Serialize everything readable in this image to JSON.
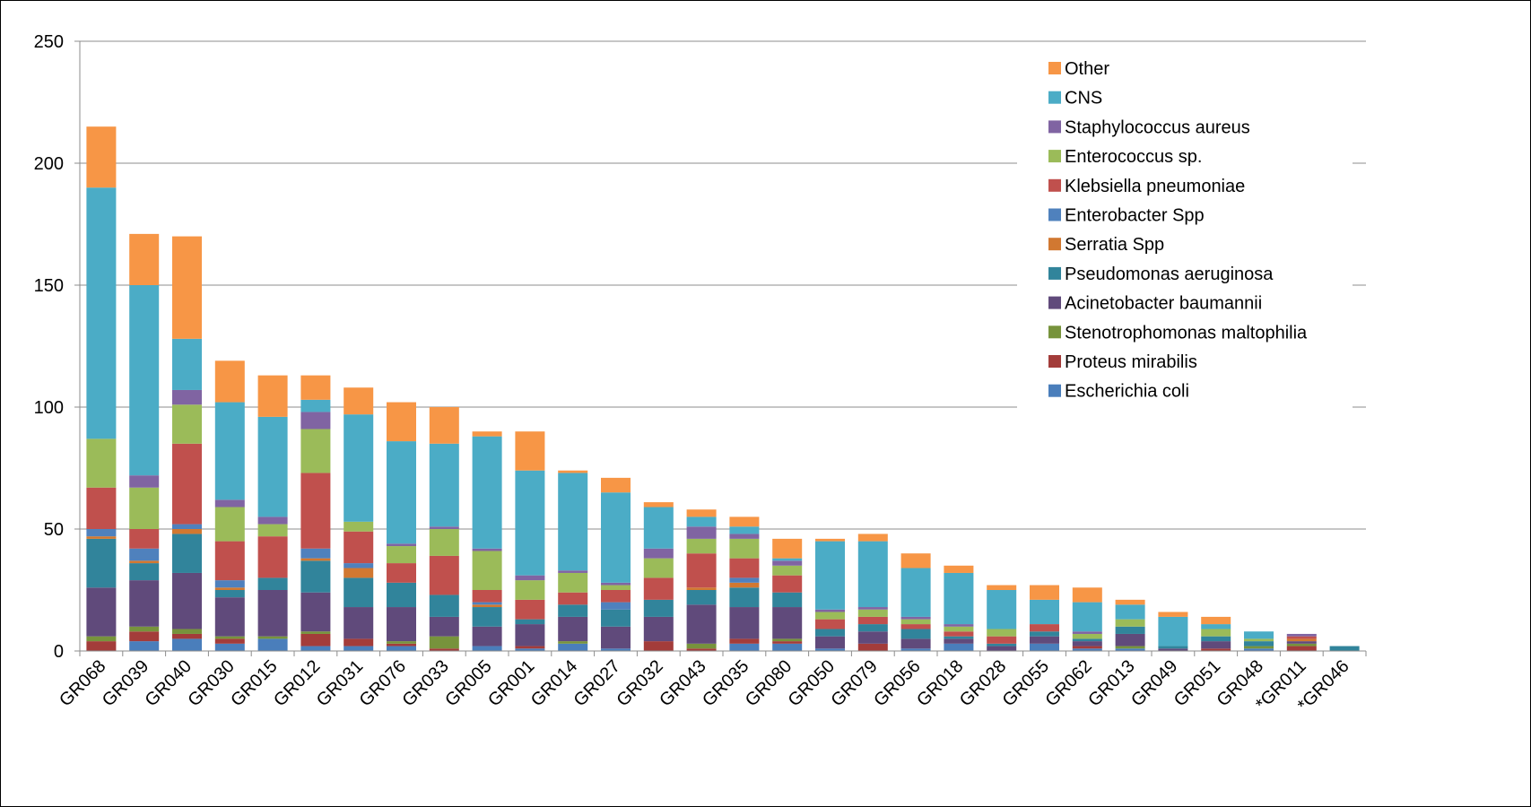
{
  "chart_data": {
    "type": "bar",
    "stacked": true,
    "ylim": [
      0,
      250
    ],
    "yticks": [
      0,
      50,
      100,
      150,
      200,
      250
    ],
    "grid": true,
    "legend_position": "top-right",
    "categories": [
      "GR068",
      "GR039",
      "GR040",
      "GR030",
      "GR015",
      "GR012",
      "GR031",
      "GR076",
      "GR033",
      "GR005",
      "GR001",
      "GR014",
      "GR027",
      "GR032",
      "GR043",
      "GR035",
      "GR080",
      "GR050",
      "GR079",
      "GR056",
      "GR018",
      "GR028",
      "GR055",
      "GR062",
      "GR013",
      "GR049",
      "GR051",
      "GR048",
      "*GR011",
      "*GR046"
    ],
    "series": [
      {
        "name": "Escherichia coli",
        "color": "#4A7EBB",
        "values": [
          0,
          4,
          5,
          3,
          5,
          2,
          2,
          2,
          0,
          2,
          1,
          3,
          1,
          0,
          0,
          3,
          3,
          1,
          0,
          1,
          3,
          0,
          3,
          1,
          1,
          0,
          0,
          1,
          0,
          0
        ]
      },
      {
        "name": "Proteus mirabilis",
        "color": "#A33C3A",
        "values": [
          4,
          4,
          2,
          2,
          0,
          5,
          3,
          1,
          1,
          0,
          1,
          0,
          0,
          4,
          1,
          2,
          1,
          0,
          3,
          0,
          0,
          0,
          0,
          1,
          0,
          0,
          1,
          0,
          2,
          0
        ]
      },
      {
        "name": "Stenotrophomonas maltophilia",
        "color": "#77933C",
        "values": [
          2,
          2,
          2,
          1,
          1,
          1,
          0,
          1,
          5,
          0,
          0,
          1,
          0,
          0,
          2,
          0,
          1,
          0,
          0,
          0,
          0,
          0,
          0,
          0,
          1,
          0,
          0,
          1,
          1,
          0
        ]
      },
      {
        "name": "Acinetobacter baumannii",
        "color": "#604A7B",
        "values": [
          20,
          19,
          23,
          16,
          19,
          16,
          13,
          14,
          8,
          8,
          9,
          10,
          9,
          10,
          16,
          13,
          13,
          5,
          5,
          4,
          2,
          2,
          3,
          2,
          5,
          1,
          3,
          0,
          1,
          0
        ]
      },
      {
        "name": "Pseudomonas aeruginosa",
        "color": "#31849B",
        "values": [
          20,
          7,
          16,
          3,
          5,
          13,
          12,
          10,
          9,
          8,
          2,
          5,
          7,
          7,
          6,
          8,
          6,
          3,
          3,
          4,
          1,
          1,
          2,
          1,
          3,
          1,
          2,
          2,
          0,
          2
        ]
      },
      {
        "name": "Serratia Spp",
        "color": "#D17831",
        "values": [
          1,
          1,
          2,
          1,
          0,
          1,
          4,
          0,
          0,
          1,
          0,
          0,
          0,
          0,
          1,
          2,
          0,
          0,
          0,
          0,
          0,
          0,
          0,
          0,
          0,
          0,
          0,
          0,
          1,
          0
        ]
      },
      {
        "name": "Enterobacter Spp",
        "color": "#4F81BD",
        "values": [
          3,
          5,
          2,
          3,
          0,
          4,
          2,
          0,
          0,
          1,
          0,
          0,
          3,
          0,
          0,
          2,
          0,
          0,
          0,
          0,
          0,
          0,
          0,
          0,
          0,
          0,
          0,
          0,
          0,
          0
        ]
      },
      {
        "name": "Klebsiella pneumoniae",
        "color": "#C0504D",
        "values": [
          17,
          8,
          33,
          16,
          17,
          31,
          13,
          8,
          16,
          5,
          8,
          5,
          5,
          9,
          14,
          8,
          7,
          4,
          3,
          2,
          2,
          3,
          3,
          0,
          0,
          0,
          0,
          0,
          1,
          0
        ]
      },
      {
        "name": "Enterococcus sp.",
        "color": "#9BBB59",
        "values": [
          20,
          17,
          16,
          14,
          5,
          18,
          4,
          7,
          11,
          16,
          8,
          8,
          2,
          8,
          6,
          8,
          4,
          3,
          3,
          2,
          2,
          3,
          0,
          2,
          3,
          0,
          3,
          1,
          0,
          0
        ]
      },
      {
        "name": "Staphylococcus aureus",
        "color": "#8064A2",
        "values": [
          0,
          5,
          6,
          3,
          3,
          7,
          0,
          1,
          1,
          1,
          2,
          1,
          1,
          4,
          5,
          2,
          2,
          1,
          1,
          1,
          1,
          0,
          0,
          1,
          0,
          0,
          0,
          0,
          1,
          0
        ]
      },
      {
        "name": "CNS",
        "color": "#4BACC6",
        "values": [
          103,
          78,
          21,
          40,
          41,
          5,
          44,
          42,
          34,
          46,
          43,
          40,
          37,
          17,
          4,
          3,
          1,
          28,
          27,
          20,
          21,
          16,
          10,
          12,
          6,
          12,
          2,
          3,
          0,
          0
        ]
      },
      {
        "name": "Other",
        "color": "#F79646",
        "values": [
          25,
          21,
          42,
          17,
          17,
          10,
          11,
          16,
          15,
          2,
          16,
          1,
          6,
          2,
          3,
          4,
          8,
          1,
          3,
          6,
          3,
          2,
          6,
          6,
          2,
          2,
          3,
          0,
          0,
          0
        ]
      }
    ]
  }
}
